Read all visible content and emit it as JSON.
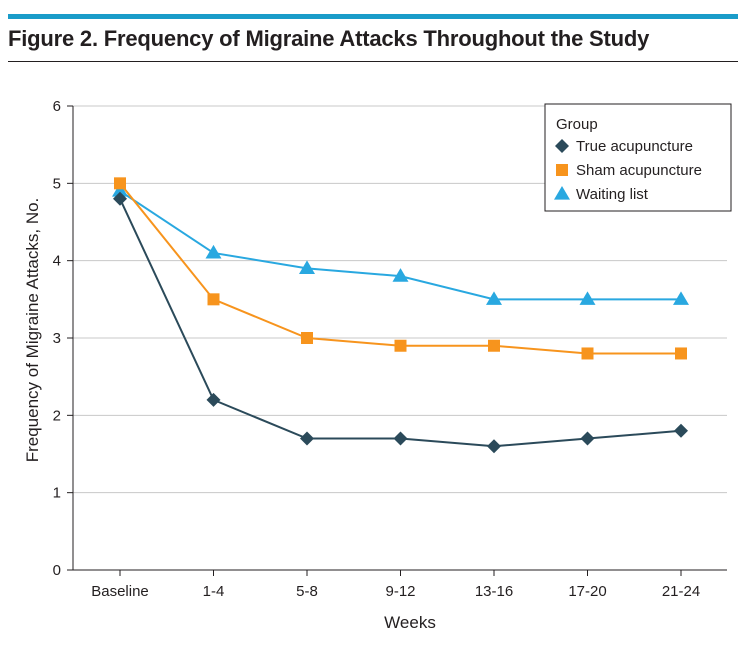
{
  "figure": {
    "title": "Figure 2. Frequency of Migraine Attacks Throughout the Study",
    "accent_color": "#1a9cc9"
  },
  "chart_data": {
    "type": "line",
    "categories": [
      "Baseline",
      "1-4",
      "5-8",
      "9-12",
      "13-16",
      "17-20",
      "21-24"
    ],
    "xlabel": "Weeks",
    "ylabel": "Frequency of Migraine Attacks, No.",
    "ylim": [
      0,
      6
    ],
    "yticks": [
      0,
      1,
      2,
      3,
      4,
      5,
      6
    ],
    "grid": "horizontal",
    "legend": {
      "title": "Group",
      "placement": "top-right"
    },
    "series": [
      {
        "name": "True acupuncture",
        "color": "#2b4a5a",
        "marker": "diamond",
        "values": [
          4.8,
          2.2,
          1.7,
          1.7,
          1.6,
          1.7,
          1.8
        ]
      },
      {
        "name": "Sham acupuncture",
        "color": "#f7941d",
        "marker": "square",
        "values": [
          5.0,
          3.5,
          3.0,
          2.9,
          2.9,
          2.8,
          2.8
        ]
      },
      {
        "name": "Waiting list",
        "color": "#29a8e0",
        "marker": "triangle",
        "values": [
          4.9,
          4.1,
          3.9,
          3.8,
          3.5,
          3.5,
          3.5
        ]
      }
    ]
  }
}
